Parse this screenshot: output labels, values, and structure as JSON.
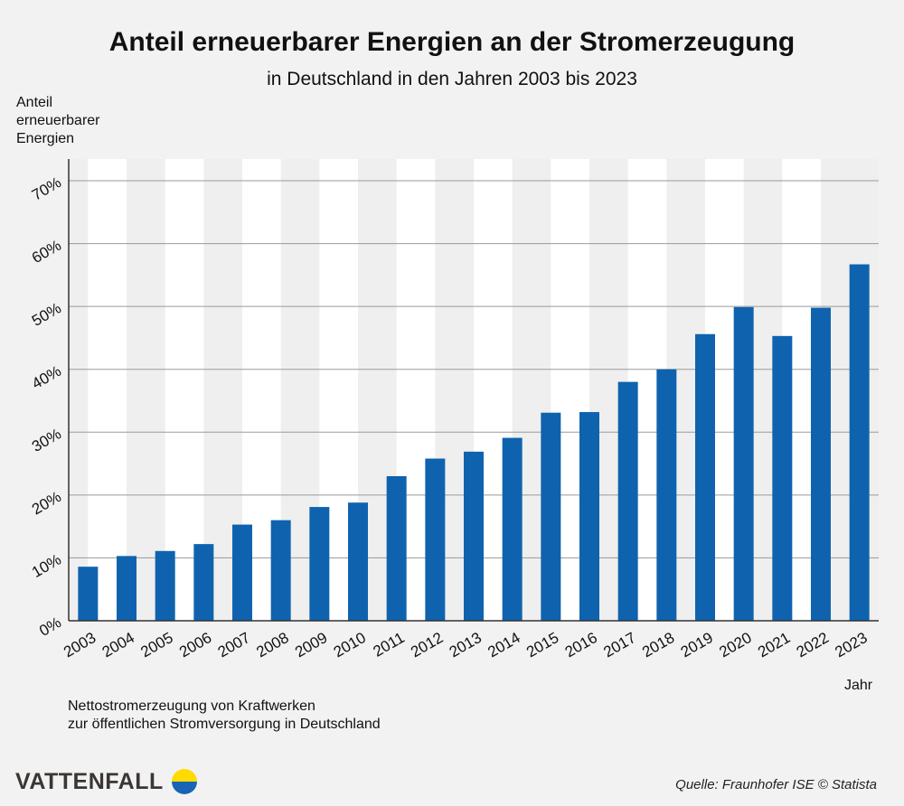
{
  "chart_data": {
    "type": "bar",
    "title": "Anteil erneuerbarer Energien an der Stromerzeugung",
    "subtitle": "in Deutschland in den Jahren 2003 bis 2023",
    "ylabel": "Anteil erneuerbarer Energien",
    "xlabel": "Jahr",
    "categories": [
      "2003",
      "2004",
      "2005",
      "2006",
      "2007",
      "2008",
      "2009",
      "2010",
      "2011",
      "2012",
      "2013",
      "2014",
      "2015",
      "2016",
      "2017",
      "2018",
      "2019",
      "2020",
      "2021",
      "2022",
      "2023"
    ],
    "values": [
      8.6,
      10.3,
      11.1,
      12.2,
      15.3,
      16.0,
      18.1,
      18.8,
      23.0,
      25.8,
      26.9,
      29.1,
      33.1,
      33.2,
      38.0,
      40.0,
      45.6,
      49.9,
      45.3,
      49.8,
      56.7
    ],
    "unit": "%",
    "ylim": [
      0,
      70
    ],
    "yticks": [
      "0%",
      "10%",
      "20%",
      "30%",
      "40%",
      "50%",
      "60%",
      "70%"
    ],
    "grid": true,
    "bar_color": "#0f63ae"
  },
  "ylabel_lines": [
    "Anteil",
    "erneuerbarer",
    "Energien"
  ],
  "note_lines": [
    "Nettostromerzeugung von Kraftwerken",
    "zur öffentlichen Stromversorgung in Deutschland"
  ],
  "source": "Quelle: Fraunhofer ISE © Statista",
  "logo": {
    "text": "VATTENFALL",
    "colors": [
      "#ffda00",
      "#1964b4"
    ]
  }
}
